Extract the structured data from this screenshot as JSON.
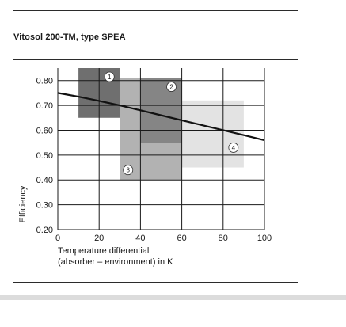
{
  "title": "Vitosol 200-TM, type SPEA",
  "chart_data": {
    "type": "area",
    "xlabel_lines": [
      "Temperature differential",
      "(absorber – environment) in K"
    ],
    "ylabel": "Efficiency",
    "xlim": [
      0,
      100
    ],
    "ylim": [
      0.2,
      0.85
    ],
    "x_ticks": [
      "0",
      "20",
      "40",
      "60",
      "80",
      "100"
    ],
    "y_ticks": [
      "0.20",
      "0.30",
      "0.40",
      "0.50",
      "0.60",
      "0.70",
      "0.80"
    ],
    "grid": true,
    "regions": [
      {
        "label": "1",
        "x": [
          10,
          30
        ],
        "y": [
          0.65,
          0.85
        ],
        "color": "#6f6f6f"
      },
      {
        "label": "3",
        "x": [
          30,
          60
        ],
        "y": [
          0.4,
          0.81
        ],
        "color": "#b2b2b2"
      },
      {
        "label": "4",
        "x": [
          60,
          90
        ],
        "y": [
          0.45,
          0.72
        ],
        "color": "#e3e3e3"
      },
      {
        "label": "2",
        "x": [
          40,
          60
        ],
        "y": [
          0.55,
          0.81
        ],
        "color": "#858585"
      }
    ],
    "region_labels": [
      {
        "label": "1",
        "x": 25,
        "y": 0.815
      },
      {
        "label": "2",
        "x": 55,
        "y": 0.775
      },
      {
        "label": "3",
        "x": 34,
        "y": 0.44
      },
      {
        "label": "4",
        "x": 85,
        "y": 0.53
      }
    ],
    "curve": {
      "x": [
        0,
        10,
        20,
        30,
        40,
        50,
        60,
        70,
        80,
        90,
        100
      ],
      "y": [
        0.75,
        0.735,
        0.718,
        0.7,
        0.68,
        0.66,
        0.64,
        0.62,
        0.6,
        0.58,
        0.56
      ]
    }
  }
}
